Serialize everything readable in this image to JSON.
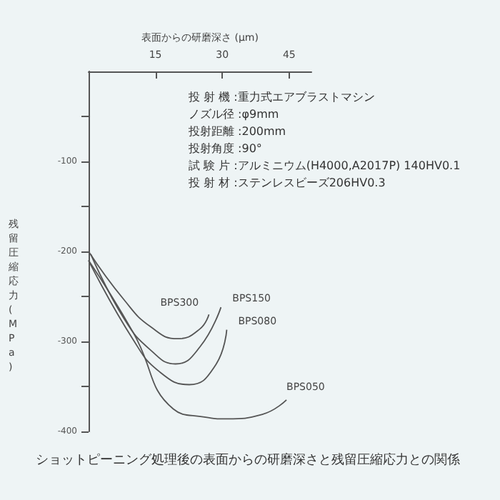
{
  "chart_data": {
    "type": "line",
    "title": "ショットピーニング処理後の表面からの研磨深さと残留圧縮応力との関係",
    "xlabel": "表面からの研磨深さ (μm)",
    "ylabel": "残留圧縮応力 (MPa)",
    "annotations": [
      "投 射 機 :重力式エアブラストマシン",
      "ノズル径 :φ9mm",
      "投射距離 :200mm",
      "投射角度 :90°",
      "試 験 片 :アルミニウム(H4000,A2017P) 140HV0.1",
      "投 射 材 :ステンレスビーズ206HV0.3"
    ],
    "xlim": [
      0,
      50
    ],
    "xticks": [
      15,
      30,
      45
    ],
    "ylim": [
      -400,
      0
    ],
    "yticks": [
      {
        "value": -50,
        "label": null
      },
      -100,
      {
        "value": -150,
        "label": null
      },
      -200,
      {
        "value": -250,
        "label": null
      },
      -300,
      {
        "value": -350,
        "label": null
      },
      -400
    ],
    "grid": false,
    "legend": false,
    "marker": "none",
    "line_style": "solid",
    "series": [
      {
        "name": "BPS300",
        "color": "#555555",
        "x": [
          0,
          8,
          14,
          20,
          25,
          27
        ],
        "values": [
          -200,
          -254,
          -284,
          -297,
          -286,
          -270
        ]
      },
      {
        "name": "BPS150",
        "color": "#555555",
        "x": [
          0.5,
          8,
          14,
          19.5,
          25,
          29.7
        ],
        "values": [
          -203,
          -275,
          -310,
          -325,
          -306,
          -262
        ]
      },
      {
        "name": "BPS080",
        "color": "#555555",
        "x": [
          0,
          10,
          16,
          22.6,
          28.4,
          31
        ],
        "values": [
          -210,
          -298,
          -334,
          -348,
          -327,
          -287
        ]
      },
      {
        "name": "BPS050",
        "color": "#555555",
        "x": [
          0,
          10,
          19,
          26,
          31,
          39,
          44.4
        ],
        "values": [
          -210,
          -290,
          -375,
          -384,
          -386,
          -381,
          -365
        ]
      }
    ]
  }
}
